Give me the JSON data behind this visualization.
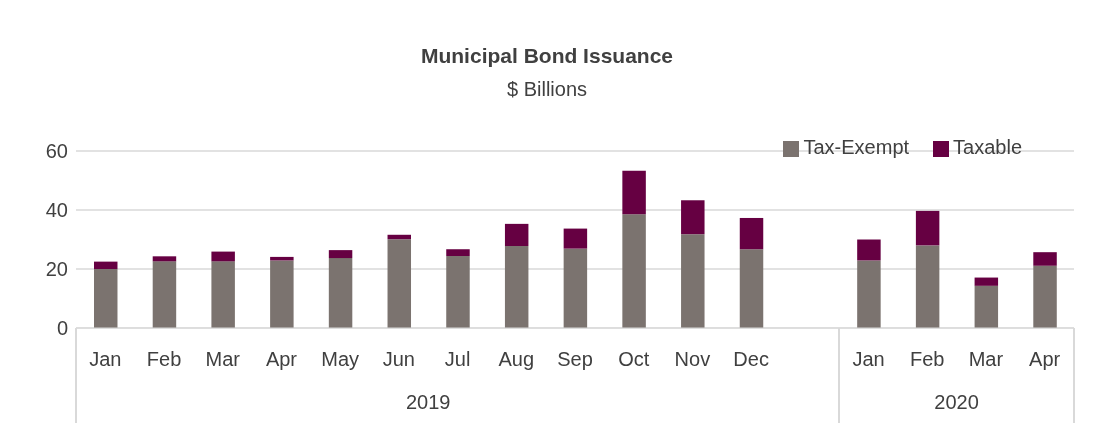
{
  "chart_data": {
    "type": "bar",
    "title": "Municipal Bond Issuance",
    "subtitle": "$ Billions",
    "stacked": true,
    "categories": [
      "Jan",
      "Feb",
      "Mar",
      "Apr",
      "May",
      "Jun",
      "Jul",
      "Aug",
      "Sep",
      "Oct",
      "Nov",
      "Dec",
      null,
      "Jan",
      "Feb",
      "Mar",
      "Apr"
    ],
    "series": [
      {
        "name": "Tax-Exempt",
        "color": "#7b736f",
        "values": [
          20,
          22.6,
          22.6,
          22.9,
          23.7,
          30.1,
          24.4,
          27.8,
          26.9,
          38.6,
          31.8,
          26.7,
          null,
          22.9,
          28,
          14.3,
          21.1
        ]
      },
      {
        "name": "Taxable",
        "color": "#660042",
        "values": [
          2.5,
          1.7,
          3.3,
          1.2,
          2.7,
          1.5,
          2.3,
          7.5,
          6.8,
          14.7,
          11.5,
          10.6,
          null,
          7.1,
          11.7,
          2.8,
          4.6
        ]
      }
    ],
    "annotations": [
      "2019",
      "2020"
    ],
    "ylim": [
      0,
      60
    ],
    "yticks": [
      0,
      20,
      40,
      60
    ],
    "grid": "y",
    "legend": "top right"
  }
}
